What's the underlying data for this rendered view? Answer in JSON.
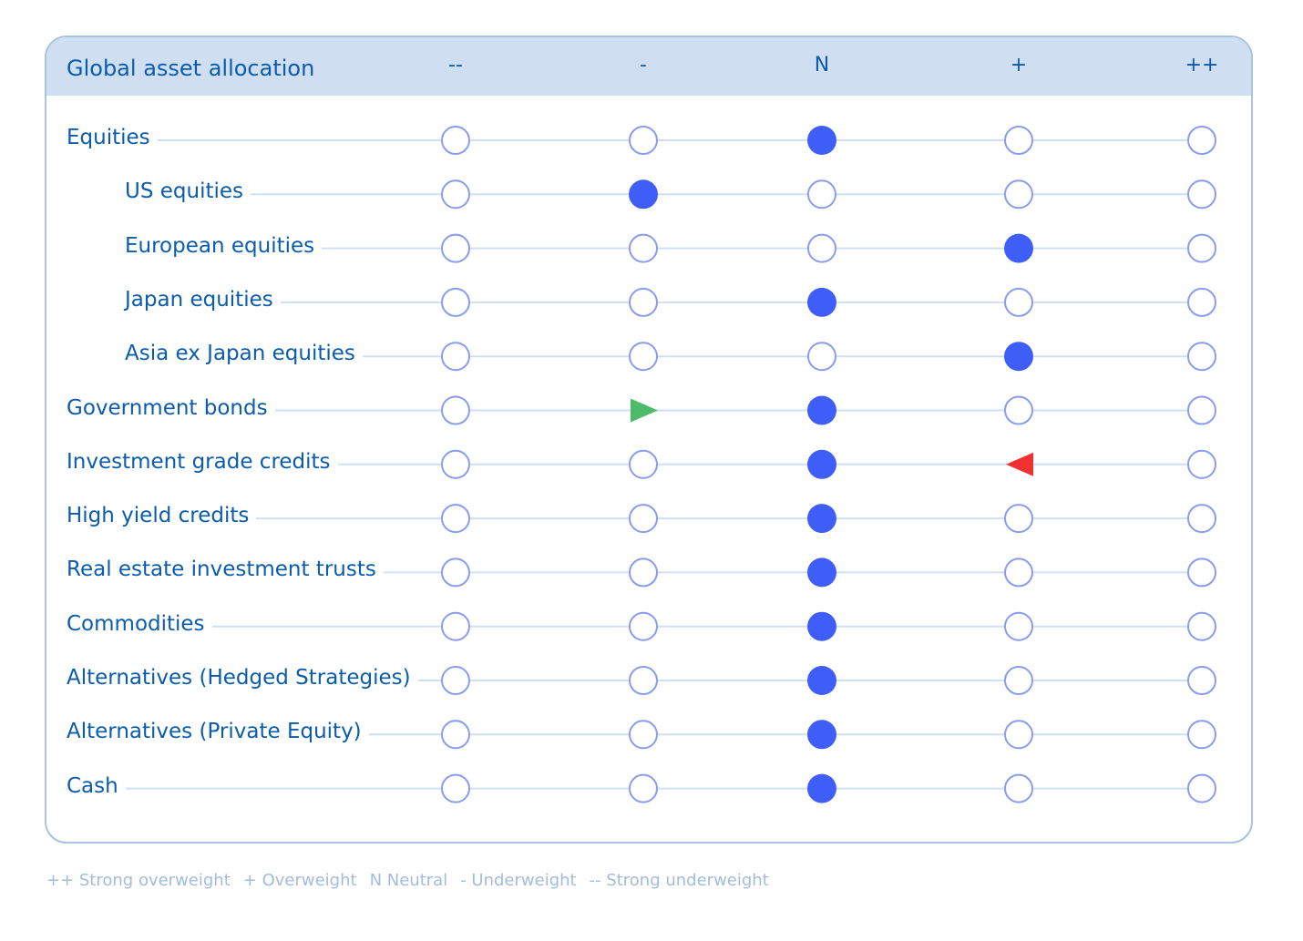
{
  "chart_data": {
    "type": "table",
    "title": "Global asset allocation",
    "columns": [
      "--",
      "-",
      "N",
      "+",
      "++"
    ],
    "rows": [
      {
        "label": "Equities",
        "indent": 0,
        "position": "N"
      },
      {
        "label": "US equities",
        "indent": 1,
        "position": "-"
      },
      {
        "label": "European equities",
        "indent": 1,
        "position": "+"
      },
      {
        "label": "Japan equities",
        "indent": 1,
        "position": "N"
      },
      {
        "label": "Asia ex Japan equities",
        "indent": 1,
        "position": "+"
      },
      {
        "label": "Government bonds",
        "indent": 0,
        "position": "N",
        "move_from": "-",
        "move_direction": "up"
      },
      {
        "label": "Investment grade credits",
        "indent": 0,
        "position": "N",
        "move_from": "+",
        "move_direction": "down"
      },
      {
        "label": "High yield credits",
        "indent": 0,
        "position": "N"
      },
      {
        "label": "Real estate investment trusts",
        "indent": 0,
        "position": "N"
      },
      {
        "label": "Commodities",
        "indent": 0,
        "position": "N"
      },
      {
        "label": "Alternatives (Hedged Strategies)",
        "indent": 0,
        "position": "N"
      },
      {
        "label": "Alternatives (Private Equity)",
        "indent": 0,
        "position": "N"
      },
      {
        "label": "Cash",
        "indent": 0,
        "position": "N"
      }
    ]
  },
  "legend": [
    "++ Strong overweight",
    "+ Overweight",
    "N Neutral",
    "- Underweight",
    "-- Strong underweight"
  ],
  "colors": {
    "filled": "#3f5ef8",
    "ring": "#8a9cf0",
    "line": "#cfe0f3",
    "text": "#0b5cad",
    "move_up": "#4cbb6a",
    "move_down": "#f03232"
  }
}
